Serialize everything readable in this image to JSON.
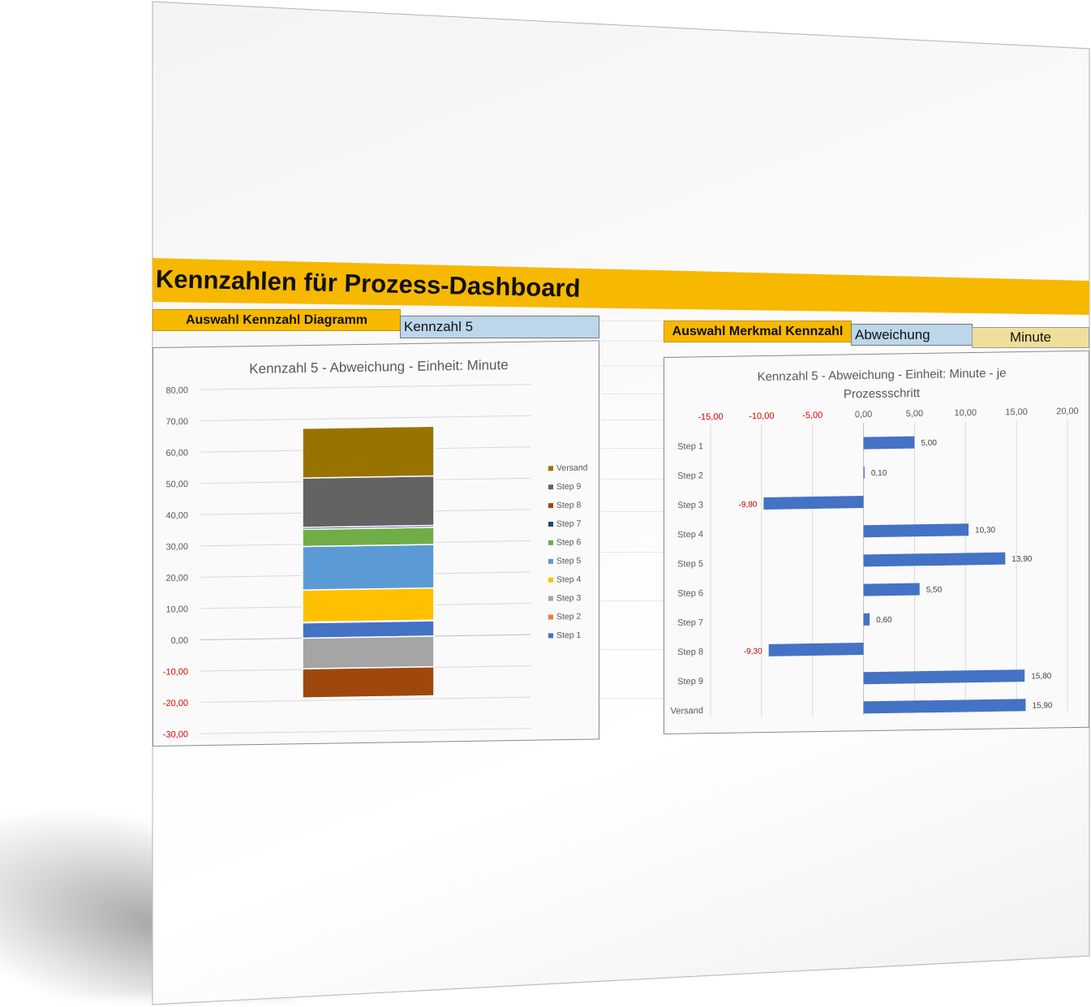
{
  "header": {
    "title": "Kennzahlen für Prozess-Dashboard"
  },
  "selectors": {
    "left": {
      "label": "Auswahl Kennzahl Diagramm",
      "value": "Kennzahl 5"
    },
    "right": {
      "label": "Auswahl Merkmal Kennzahl",
      "value": "Abweichung",
      "unit": "Minute"
    }
  },
  "colors": {
    "accent": "#f7b800",
    "value_cell": "#bcd6ea",
    "unit_cell": "#efdf9a",
    "bar_blue": "#4472c4",
    "negative_text": "#e00000"
  },
  "chart_data": [
    {
      "type": "bar",
      "stacked": true,
      "orientation": "vertical",
      "title": "Kennzahl 5 - Abweichung - Einheit: Minute",
      "xlabel": "",
      "ylabel": "",
      "ylim": [
        -30,
        80
      ],
      "y_ticks": [
        "80,00",
        "70,00",
        "60,00",
        "50,00",
        "40,00",
        "30,00",
        "20,00",
        "10,00",
        "0,00",
        "-10,00",
        "-20,00",
        "-30,00"
      ],
      "y_tick_values": [
        80,
        70,
        60,
        50,
        40,
        30,
        20,
        10,
        0,
        -10,
        -20,
        -30
      ],
      "grid": true,
      "legend_position": "right",
      "legend": [
        "Versand",
        "Step 9",
        "Step 8",
        "Step 7",
        "Step 6",
        "Step 5",
        "Step 4",
        "Step 3",
        "Step 2",
        "Step 1"
      ],
      "series": [
        {
          "name": "Step 1",
          "value": 5.0,
          "color": "#4472c4"
        },
        {
          "name": "Step 2",
          "value": 0.1,
          "color": "#ed7d31"
        },
        {
          "name": "Step 3",
          "value": -9.8,
          "color": "#a5a5a5"
        },
        {
          "name": "Step 4",
          "value": 10.3,
          "color": "#ffc000"
        },
        {
          "name": "Step 5",
          "value": 13.9,
          "color": "#5b9bd5"
        },
        {
          "name": "Step 6",
          "value": 5.5,
          "color": "#70ad47"
        },
        {
          "name": "Step 7",
          "value": 0.6,
          "color": "#264478"
        },
        {
          "name": "Step 8",
          "value": -9.3,
          "color": "#9e480e"
        },
        {
          "name": "Step 9",
          "value": 15.8,
          "color": "#636363"
        },
        {
          "name": "Versand",
          "value": 15.9,
          "color": "#997300"
        }
      ]
    },
    {
      "type": "bar",
      "orientation": "horizontal",
      "title": "Kennzahl 5 - Abweichung - Einheit: Minute - je Prozessschritt",
      "title_lines": [
        "Kennzahl 5 - Abweichung - Einheit: Minute - je",
        "Prozessschritt"
      ],
      "xlabel": "",
      "ylabel": "",
      "xlim": [
        -15,
        20
      ],
      "x_ticks": [
        "-15,00",
        "-10,00",
        "-5,00",
        "0,00",
        "5,00",
        "10,00",
        "15,00",
        "20,00"
      ],
      "x_tick_values": [
        -15,
        -10,
        -5,
        0,
        5,
        10,
        15,
        20
      ],
      "grid": true,
      "categories": [
        "Step 1",
        "Step 2",
        "Step 3",
        "Step 4",
        "Step 5",
        "Step 6",
        "Step 7",
        "Step 8",
        "Step 9",
        "Versand"
      ],
      "values": [
        5.0,
        0.1,
        -9.8,
        10.3,
        13.9,
        5.5,
        0.6,
        -9.3,
        15.8,
        15.9
      ],
      "value_labels": [
        "5,00",
        "0,10",
        "-9,80",
        "10,30",
        "13,90",
        "5,50",
        "0,60",
        "-9,30",
        "15,80",
        "15,90"
      ],
      "color": "#4472c4"
    }
  ]
}
